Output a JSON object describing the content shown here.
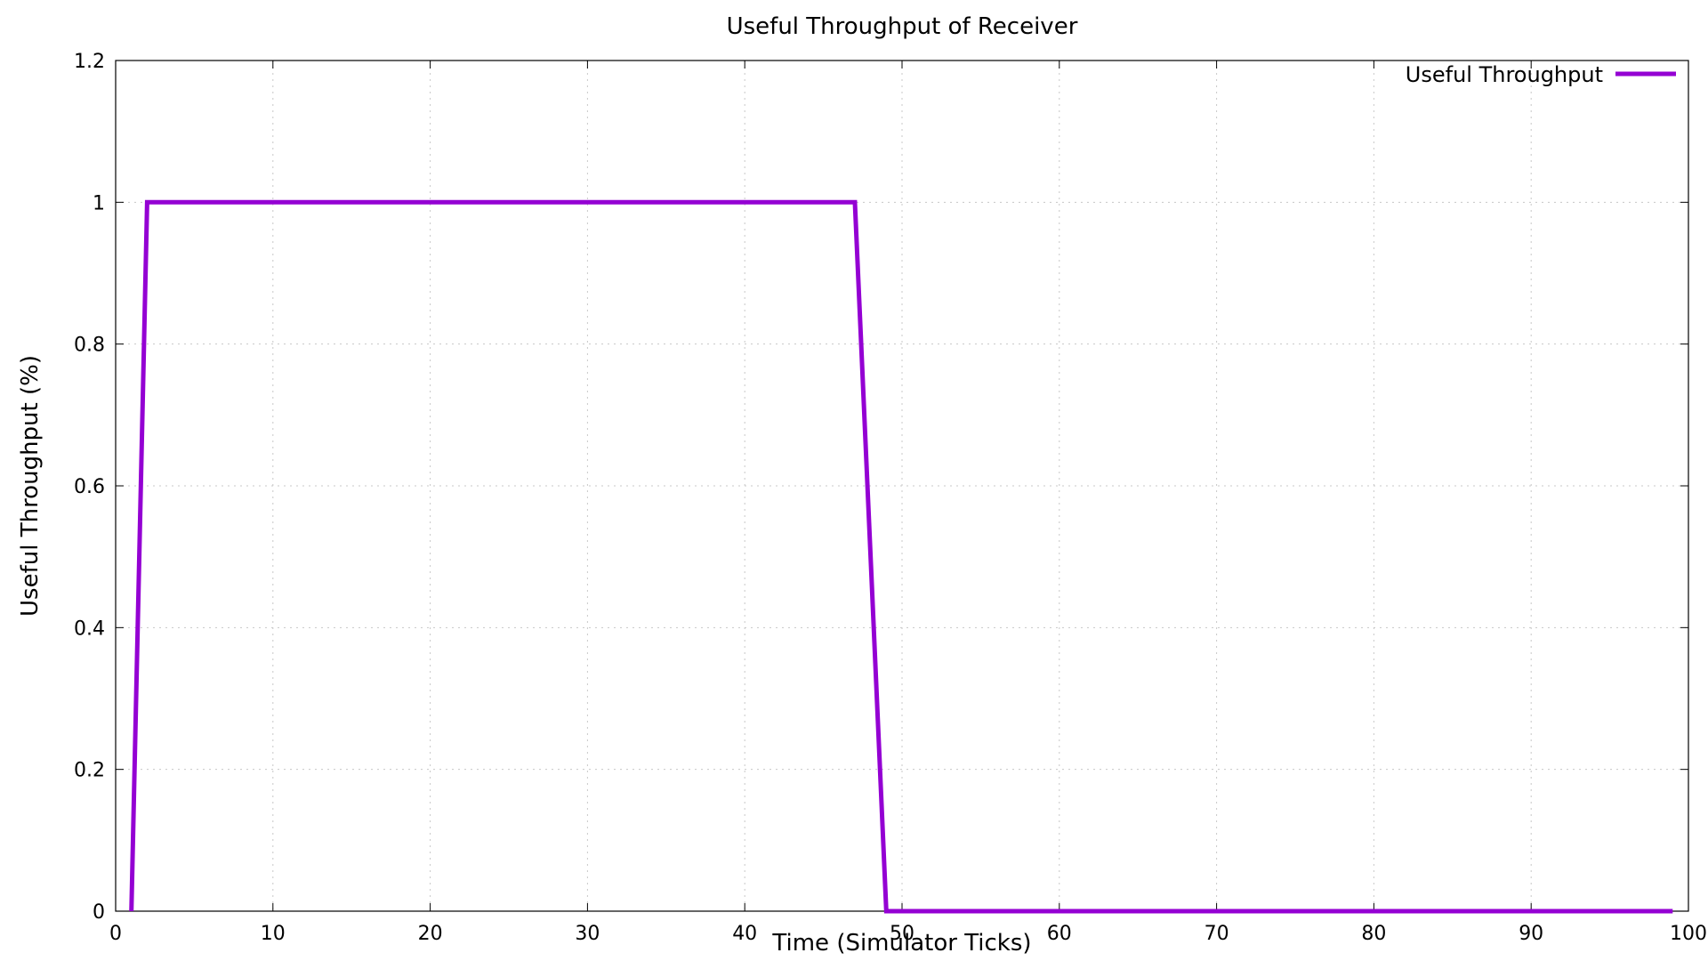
{
  "chart_data": {
    "type": "line",
    "title": "Useful Throughput of Receiver",
    "xlabel": "Time (Simulator Ticks)",
    "ylabel": "Useful Throughput (%)",
    "xlim": [
      0,
      100
    ],
    "ylim": [
      0,
      1.2
    ],
    "x_ticks": [
      0,
      10,
      20,
      30,
      40,
      50,
      60,
      70,
      80,
      90,
      100
    ],
    "y_ticks": [
      0,
      0.2,
      0.4,
      0.6,
      0.8,
      1,
      1.2
    ],
    "x_tick_labels": [
      "0",
      "10",
      "20",
      "30",
      "40",
      "50",
      "60",
      "70",
      "80",
      "90",
      "100"
    ],
    "y_tick_labels": [
      "0",
      "0.2",
      "0.4",
      "0.6",
      "0.8",
      "1",
      "1.2"
    ],
    "grid": true,
    "legend_position": "top-right",
    "series": [
      {
        "name": "Useful Throughput",
        "color": "#9400d3",
        "points": [
          [
            1,
            0
          ],
          [
            2,
            1
          ],
          [
            47,
            1
          ],
          [
            49,
            0
          ],
          [
            99,
            0
          ]
        ]
      }
    ]
  }
}
